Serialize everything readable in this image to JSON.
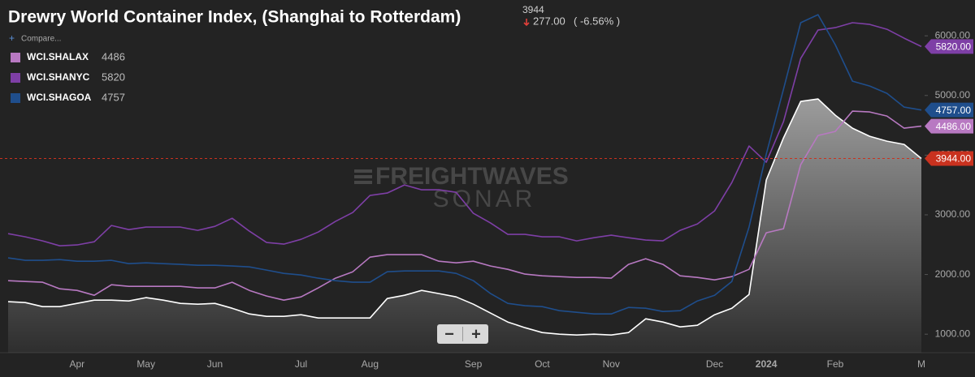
{
  "chart_data": {
    "type": "line",
    "title": "Drewry World Container Index, (Shanghai to Rotterdam)",
    "header": {
      "change": "277.00",
      "change_pct": "( -6.56% )",
      "compare": "Compare..."
    },
    "watermark": {
      "brand": "FREIGHTWAVES",
      "product": "SONAR"
    },
    "controls": {
      "zoom_out": "−",
      "zoom_in": "+"
    },
    "categories": [
      null,
      null,
      null,
      null,
      "Apr",
      null,
      null,
      null,
      "May",
      null,
      null,
      null,
      "Jun",
      null,
      null,
      null,
      null,
      "Jul",
      null,
      null,
      null,
      "Aug",
      null,
      null,
      null,
      null,
      null,
      "Sep",
      null,
      null,
      null,
      "Oct",
      null,
      null,
      null,
      "Nov",
      null,
      null,
      null,
      null,
      null,
      "Dec",
      null,
      null,
      "2024",
      null,
      null,
      null,
      "Feb",
      null,
      null,
      null,
      null,
      "M"
    ],
    "ylim": [
      690,
      6600
    ],
    "yticks": [
      {
        "value": 1000,
        "label": "1000.00"
      },
      {
        "value": 2000,
        "label": "2000.00"
      },
      {
        "value": 3000,
        "label": "3000.00"
      },
      {
        "value": 4000,
        "label": "4000.00"
      },
      {
        "value": 5000,
        "label": "5000.00"
      },
      {
        "value": 6000,
        "label": "6000.00"
      }
    ],
    "reference_line": {
      "color": "#c9321f"
    },
    "series": [
      {
        "color": "#ffffff",
        "tag_color": "#c9321f",
        "end_label": "3944.00",
        "area": true,
        "values": [
          1544,
          1530,
          1462,
          1462,
          1516,
          1571,
          1571,
          1557,
          1612,
          1571,
          1516,
          1503,
          1516,
          1435,
          1340,
          1299,
          1299,
          1326,
          1272,
          1272,
          1272,
          1272,
          1598,
          1652,
          1734,
          1680,
          1625,
          1503,
          1353,
          1204,
          1109,
          1027,
          1000,
          986,
          1000,
          986,
          1027,
          1258,
          1204,
          1122,
          1149,
          1326,
          1435,
          1666,
          3582,
          4289,
          4900,
          4941,
          4669,
          4452,
          4316,
          4234,
          4180,
          3944
        ]
      },
      {
        "name": "WCI.SHALAX",
        "color": "#b879c2",
        "tag_color": "#b879c2",
        "end_label": "4486.00",
        "values": [
          1897,
          1883,
          1870,
          1761,
          1734,
          1652,
          1829,
          1802,
          1802,
          1802,
          1802,
          1775,
          1775,
          1870,
          1734,
          1639,
          1571,
          1625,
          1775,
          1938,
          2046,
          2291,
          2332,
          2332,
          2332,
          2223,
          2196,
          2223,
          2142,
          2087,
          2006,
          1978,
          1965,
          1951,
          1951,
          1938,
          2169,
          2264,
          2169,
          1978,
          1951,
          1910,
          1965,
          2087,
          2699,
          2767,
          3840,
          4330,
          4398,
          4737,
          4724,
          4656,
          4452,
          4486
        ]
      },
      {
        "name": "WCI.SHANYC",
        "color": "#7e3fa6",
        "tag_color": "#7e3fa6",
        "end_label": "5820.00",
        "values": [
          2685,
          2631,
          2563,
          2481,
          2495,
          2549,
          2821,
          2753,
          2794,
          2794,
          2794,
          2740,
          2807,
          2943,
          2726,
          2536,
          2509,
          2590,
          2712,
          2889,
          3039,
          3324,
          3365,
          3501,
          3419,
          3419,
          3378,
          3025,
          2862,
          2672,
          2672,
          2631,
          2631,
          2563,
          2617,
          2658,
          2617,
          2577,
          2563,
          2740,
          2848,
          3066,
          3541,
          4153,
          3881,
          4561,
          5621,
          6096,
          6137,
          6219,
          6191,
          6110,
          5960,
          5820
        ]
      },
      {
        "name": "WCI.SHAGOA",
        "color": "#1f4e8c",
        "tag_color": "#1f4e8c",
        "end_label": "4757.00",
        "values": [
          2278,
          2237,
          2237,
          2250,
          2223,
          2223,
          2237,
          2182,
          2196,
          2182,
          2169,
          2155,
          2155,
          2142,
          2128,
          2074,
          2019,
          1992,
          1938,
          1897,
          1870,
          1870,
          2046,
          2060,
          2060,
          2060,
          2019,
          1897,
          1680,
          1516,
          1476,
          1462,
          1394,
          1367,
          1340,
          1340,
          1448,
          1435,
          1380,
          1394,
          1557,
          1652,
          1883,
          2794,
          4017,
          5104,
          6219,
          6354,
          5852,
          5240,
          5159,
          5036,
          4805,
          4757
        ]
      }
    ]
  }
}
